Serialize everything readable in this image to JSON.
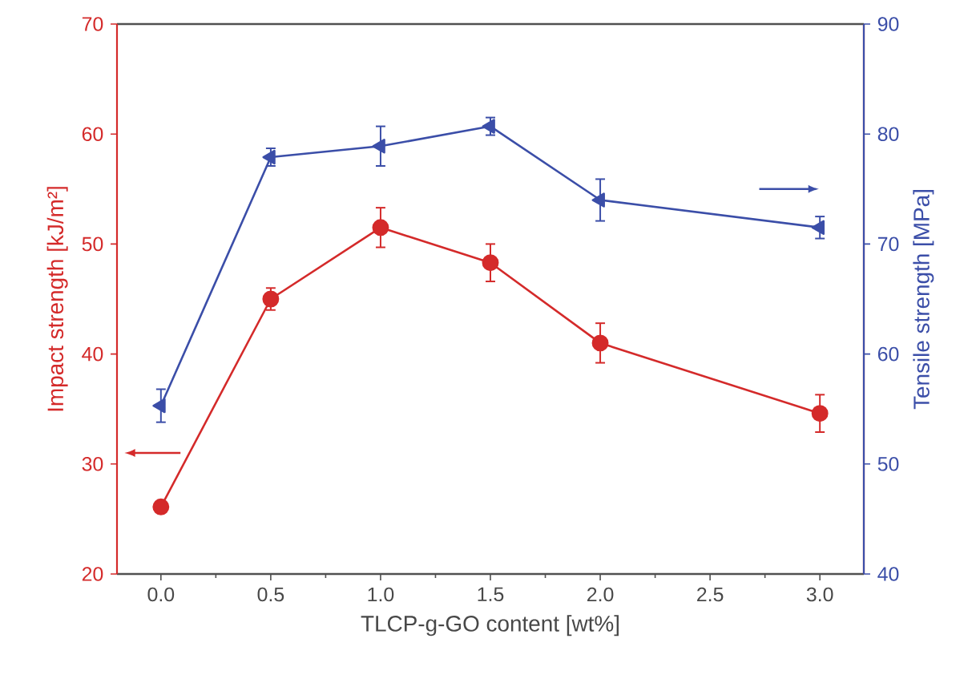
{
  "chart_data": {
    "type": "line",
    "xlabel": "TLCP-g-GO content [wt%]",
    "ylabel": "Impact strength [kJ/m²]",
    "y2label": "Tensile strength [MPa]",
    "x": [
      0,
      0.5,
      1.0,
      1.5,
      2.0,
      3.0
    ],
    "xlim": [
      -0.2,
      3.2
    ],
    "xticks": [
      {
        "value": 0,
        "label": "0.0"
      },
      {
        "value": 0.5,
        "label": "0.5"
      },
      {
        "value": 1,
        "label": "1.0"
      },
      {
        "value": 1.5,
        "label": "1.5"
      },
      {
        "value": 2,
        "label": "2.0"
      },
      {
        "value": 2.5,
        "label": "2.5"
      },
      {
        "value": 3,
        "label": "3.0"
      }
    ],
    "ylim": [
      20,
      70
    ],
    "yticks": [
      20,
      30,
      40,
      50,
      60,
      70
    ],
    "y2lim": [
      40,
      90
    ],
    "y2ticks": [
      40,
      50,
      60,
      70,
      80,
      90
    ],
    "line_style": "solid",
    "series": [
      {
        "color": "#d42a2a",
        "marker": "circle",
        "values": [
          26.1,
          45,
          51.5,
          48.3,
          41,
          34.6
        ],
        "errors": [
          0.5,
          1,
          1.8,
          1.7,
          1.8,
          1.7
        ]
      },
      {
        "color": "#3b4ea8",
        "marker": "triangle",
        "axis": "y2",
        "values": [
          55.3,
          77.9,
          78.9,
          80.7,
          74,
          71.5
        ],
        "errors": [
          1.5,
          0.8,
          1.8,
          0.8,
          1.9,
          1
        ]
      }
    ]
  }
}
